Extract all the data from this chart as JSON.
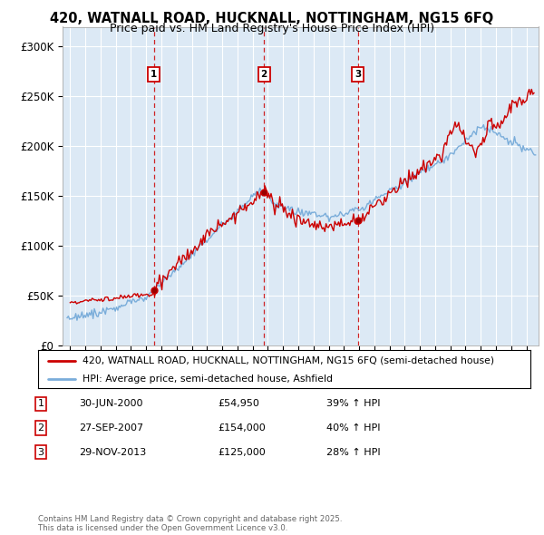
{
  "title_line1": "420, WATNALL ROAD, HUCKNALL, NOTTINGHAM, NG15 6FQ",
  "title_line2": "Price paid vs. HM Land Registry's House Price Index (HPI)",
  "plot_bg_color": "#dce9f5",
  "red_line_color": "#cc0000",
  "blue_line_color": "#7aadda",
  "sale_markers": [
    {
      "date_num": 2000.5,
      "price": 54950,
      "label": "1"
    },
    {
      "date_num": 2007.75,
      "price": 154000,
      "label": "2"
    },
    {
      "date_num": 2013.92,
      "price": 125000,
      "label": "3"
    }
  ],
  "legend_entries": [
    "420, WATNALL ROAD, HUCKNALL, NOTTINGHAM, NG15 6FQ (semi-detached house)",
    "HPI: Average price, semi-detached house, Ashfield"
  ],
  "table_rows": [
    {
      "num": "1",
      "date": "30-JUN-2000",
      "price": "£54,950",
      "change": "39% ↑ HPI"
    },
    {
      "num": "2",
      "date": "27-SEP-2007",
      "price": "£154,000",
      "change": "40% ↑ HPI"
    },
    {
      "num": "3",
      "date": "29-NOV-2013",
      "price": "£125,000",
      "change": "28% ↑ HPI"
    }
  ],
  "footer": "Contains HM Land Registry data © Crown copyright and database right 2025.\nThis data is licensed under the Open Government Licence v3.0.",
  "ylim": [
    0,
    320000
  ],
  "yticks": [
    0,
    50000,
    100000,
    150000,
    200000,
    250000,
    300000
  ],
  "ytick_labels": [
    "£0",
    "£50K",
    "£100K",
    "£150K",
    "£200K",
    "£250K",
    "£300K"
  ],
  "xmin": 1994.5,
  "xmax": 2025.8
}
